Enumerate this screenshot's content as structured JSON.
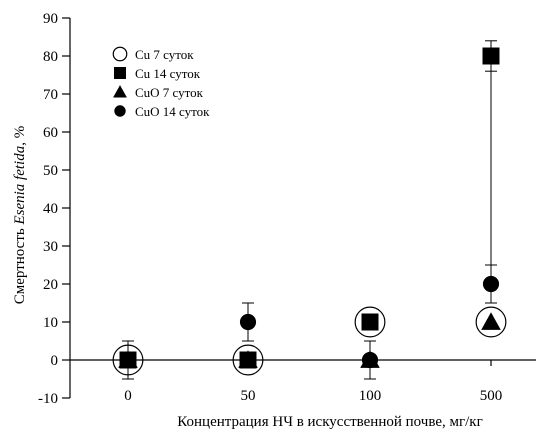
{
  "chart_data": {
    "type": "scatter",
    "ylabel_prefix": "Смертность ",
    "ylabel_species": "Esenia fetida",
    "ylabel_suffix": ", %",
    "xlabel": "Концентрация НЧ в искусственной почве, мг/кг",
    "categories": [
      "0",
      "50",
      "100",
      "500"
    ],
    "yticks": [
      -10,
      0,
      10,
      20,
      30,
      40,
      50,
      60,
      70,
      80,
      90
    ],
    "ylim": [
      -10,
      90
    ],
    "grid": false,
    "legend_position": "top-left",
    "series": [
      {
        "name": "Cu 7 суток",
        "marker": "circle-open",
        "values": [
          0,
          0,
          10,
          10
        ],
        "errors": [
          0,
          0,
          0,
          0
        ]
      },
      {
        "name": "Cu 14 суток",
        "marker": "square",
        "values": [
          0,
          0,
          10,
          80
        ],
        "errors": [
          0,
          0,
          0,
          4
        ]
      },
      {
        "name": "CuO 7 суток",
        "marker": "triangle",
        "values": [
          0,
          0,
          0,
          10
        ],
        "errors": [
          0,
          0,
          5,
          0
        ]
      },
      {
        "name": "CuO 14 суток",
        "marker": "circle",
        "values": [
          0,
          10,
          0,
          20
        ],
        "errors": [
          5,
          5,
          5,
          5
        ]
      }
    ]
  }
}
